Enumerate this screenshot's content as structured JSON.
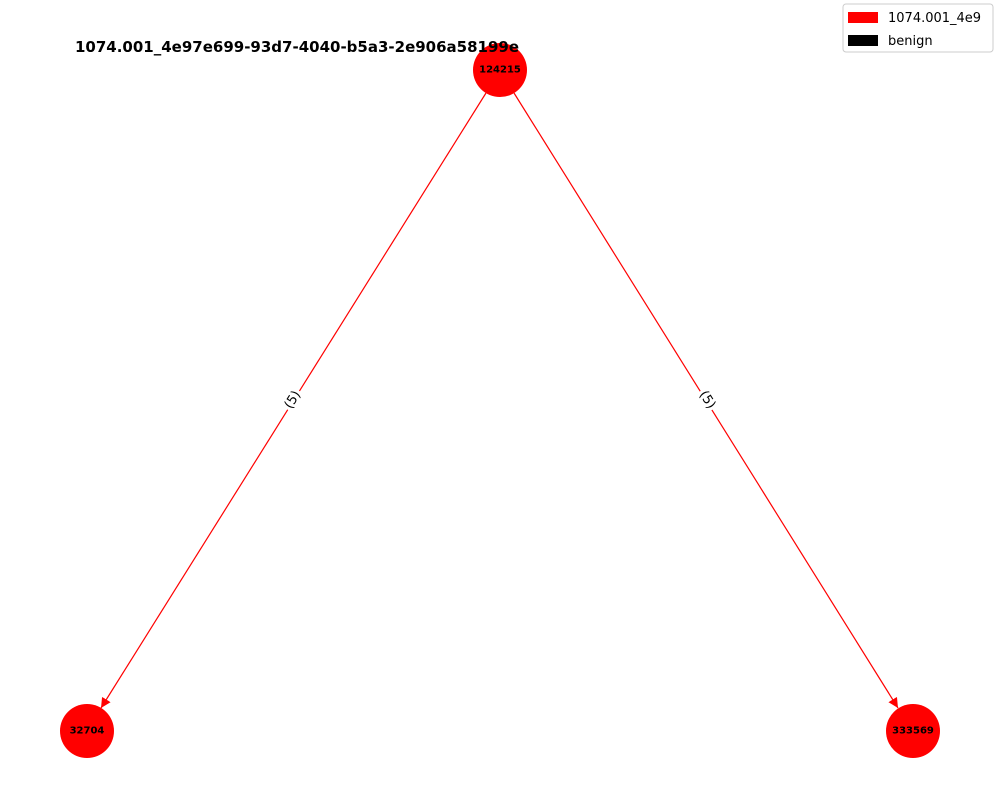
{
  "title": "1074.001_4e97e699-93d7-4040-b5a3-2e906a58199e",
  "colors": {
    "malicious": "#ff0000",
    "benign": "#000000",
    "edge": "#ff0000"
  },
  "legend": {
    "items": [
      {
        "label": "1074.001_4e9",
        "color": "#ff0000"
      },
      {
        "label": "benign",
        "color": "#000000"
      }
    ]
  },
  "nodes": [
    {
      "id": "124215",
      "label": "124215"
    },
    {
      "id": "32704",
      "label": "32704"
    },
    {
      "id": "333569",
      "label": "333569"
    }
  ],
  "edges": [
    {
      "from": "124215",
      "to": "32704",
      "label": "(5)"
    },
    {
      "from": "124215",
      "to": "333569",
      "label": "(5)"
    }
  ]
}
